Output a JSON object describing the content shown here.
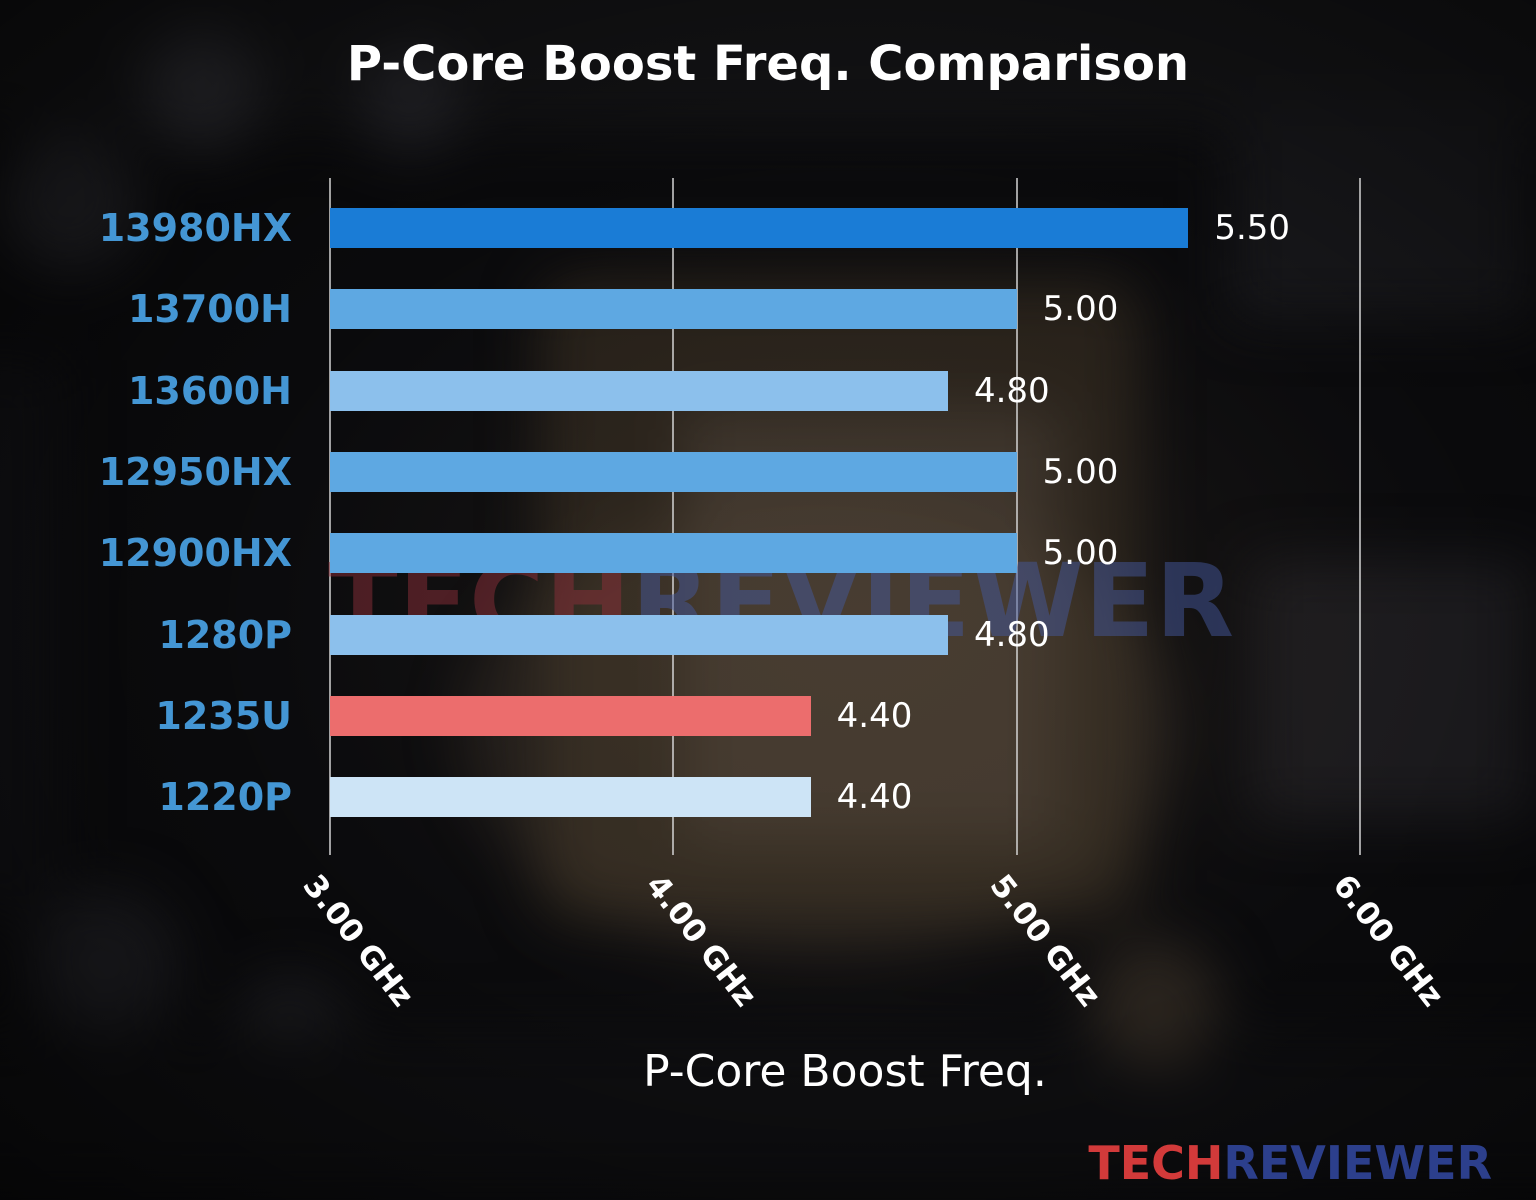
{
  "chart_data": {
    "type": "bar",
    "orientation": "horizontal",
    "title": "P-Core Boost Freq. Comparison",
    "xlabel": "P-Core Boost Freq.",
    "categories": [
      "13980HX",
      "13700H",
      "13600H",
      "12950HX",
      "12900HX",
      "1280P",
      "1235U",
      "1220P"
    ],
    "values": [
      5.5,
      5.0,
      4.8,
      5.0,
      5.0,
      4.8,
      4.4,
      4.4
    ],
    "value_labels": [
      "5.50",
      "5.00",
      "4.80",
      "5.00",
      "5.00",
      "4.80",
      "4.40",
      "4.40"
    ],
    "bar_colors": [
      "#1a7cd6",
      "#5ea8e2",
      "#8cc0ec",
      "#5ea8e2",
      "#5ea8e2",
      "#8cc0ec",
      "#ec6d6d",
      "#cde4f6"
    ],
    "category_label_color": "#4496d4",
    "value_label_color": "#ffffff",
    "grid": true,
    "grid_color": "#d4d4d4",
    "xlim": [
      3.0,
      6.3
    ],
    "xticks": [
      3,
      4,
      5,
      6
    ],
    "xtick_labels": [
      "3.00 GHz",
      "4.00 GHz",
      "5.00 GHz",
      "6.00 GHz"
    ],
    "legend": "none"
  },
  "watermark": {
    "part1": "TECH",
    "part2": "REVIEWER",
    "part1_color": "#8c2f3a",
    "part2_color": "#44589c"
  },
  "footer_brand": {
    "part1": "TECH",
    "part2": "REVIEWER",
    "part1_color": "#d23a3a",
    "part2_color": "#2c3f8c"
  }
}
